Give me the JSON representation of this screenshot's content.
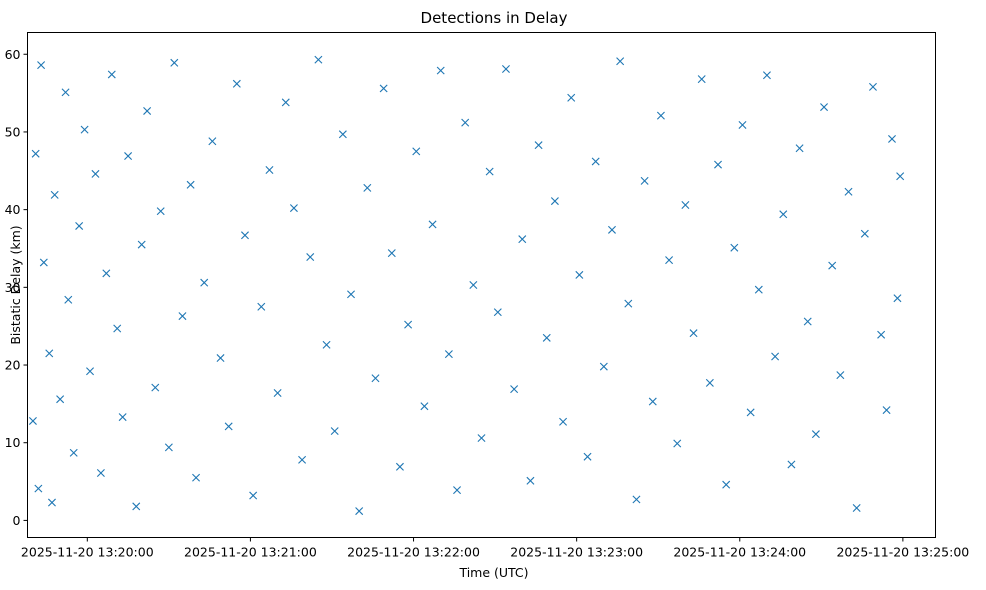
{
  "chart_data": {
    "type": "scatter",
    "title": "Detections in Delay",
    "xlabel": "Time (UTC)",
    "ylabel": "Bistatic Delay (km)",
    "xlim": [
      "2025-11-20 13:19:38",
      "2025-11-20 13:25:12"
    ],
    "ylim": [
      -2.2,
      62.8
    ],
    "x_ticks": [
      "2025-11-20 13:20:00",
      "2025-11-20 13:21:00",
      "2025-11-20 13:22:00",
      "2025-11-20 13:23:00",
      "2025-11-20 13:24:00",
      "2025-11-20 13:25:00"
    ],
    "y_ticks": [
      "0",
      "10",
      "20",
      "30",
      "40",
      "50",
      "60"
    ],
    "y_tick_values": [
      0,
      10,
      20,
      30,
      40,
      50,
      60
    ],
    "marker": "x",
    "color": "#1f77b4",
    "grid": false,
    "legend": "none",
    "series": [
      {
        "x": [
          "2025-11-20 13:19:40",
          "2025-11-20 13:19:41",
          "2025-11-20 13:19:42",
          "2025-11-20 13:19:43",
          "2025-11-20 13:19:44",
          "2025-11-20 13:19:46",
          "2025-11-20 13:19:47",
          "2025-11-20 13:19:48",
          "2025-11-20 13:19:50",
          "2025-11-20 13:19:52",
          "2025-11-20 13:19:53",
          "2025-11-20 13:19:55",
          "2025-11-20 13:19:57",
          "2025-11-20 13:19:59",
          "2025-11-20 13:20:01",
          "2025-11-20 13:20:03",
          "2025-11-20 13:20:05",
          "2025-11-20 13:20:07",
          "2025-11-20 13:20:09",
          "2025-11-20 13:20:11",
          "2025-11-20 13:20:13",
          "2025-11-20 13:20:15",
          "2025-11-20 13:20:18",
          "2025-11-20 13:20:20",
          "2025-11-20 13:20:22",
          "2025-11-20 13:20:25",
          "2025-11-20 13:20:27",
          "2025-11-20 13:20:30",
          "2025-11-20 13:20:32",
          "2025-11-20 13:20:35",
          "2025-11-20 13:20:38",
          "2025-11-20 13:20:40",
          "2025-11-20 13:20:43",
          "2025-11-20 13:20:46",
          "2025-11-20 13:20:49",
          "2025-11-20 13:20:52",
          "2025-11-20 13:20:55",
          "2025-11-20 13:20:58",
          "2025-11-20 13:21:01",
          "2025-11-20 13:21:04",
          "2025-11-20 13:21:07",
          "2025-11-20 13:21:10",
          "2025-11-20 13:21:13",
          "2025-11-20 13:21:16",
          "2025-11-20 13:21:19",
          "2025-11-20 13:21:22",
          "2025-11-20 13:21:25",
          "2025-11-20 13:21:28",
          "2025-11-20 13:21:31",
          "2025-11-20 13:21:34",
          "2025-11-20 13:21:37",
          "2025-11-20 13:21:40",
          "2025-11-20 13:21:43",
          "2025-11-20 13:21:46",
          "2025-11-20 13:21:49",
          "2025-11-20 13:21:52",
          "2025-11-20 13:21:55",
          "2025-11-20 13:21:58",
          "2025-11-20 13:22:01",
          "2025-11-20 13:22:04",
          "2025-11-20 13:22:07",
          "2025-11-20 13:22:10",
          "2025-11-20 13:22:13",
          "2025-11-20 13:22:16",
          "2025-11-20 13:22:19",
          "2025-11-20 13:22:22",
          "2025-11-20 13:22:25",
          "2025-11-20 13:22:28",
          "2025-11-20 13:22:31",
          "2025-11-20 13:22:34",
          "2025-11-20 13:22:37",
          "2025-11-20 13:22:40",
          "2025-11-20 13:22:43",
          "2025-11-20 13:22:46",
          "2025-11-20 13:22:49",
          "2025-11-20 13:22:52",
          "2025-11-20 13:22:55",
          "2025-11-20 13:22:58",
          "2025-11-20 13:23:01",
          "2025-11-20 13:23:04",
          "2025-11-20 13:23:07",
          "2025-11-20 13:23:10",
          "2025-11-20 13:23:13",
          "2025-11-20 13:23:16",
          "2025-11-20 13:23:19",
          "2025-11-20 13:23:22",
          "2025-11-20 13:23:25",
          "2025-11-20 13:23:28",
          "2025-11-20 13:23:31",
          "2025-11-20 13:23:34",
          "2025-11-20 13:23:37",
          "2025-11-20 13:23:40",
          "2025-11-20 13:23:43",
          "2025-11-20 13:23:46",
          "2025-11-20 13:23:49",
          "2025-11-20 13:23:52",
          "2025-11-20 13:23:55",
          "2025-11-20 13:23:58",
          "2025-11-20 13:24:01",
          "2025-11-20 13:24:04",
          "2025-11-20 13:24:07",
          "2025-11-20 13:24:10",
          "2025-11-20 13:24:13",
          "2025-11-20 13:24:16",
          "2025-11-20 13:24:19",
          "2025-11-20 13:24:22",
          "2025-11-20 13:24:25",
          "2025-11-20 13:24:28",
          "2025-11-20 13:24:31",
          "2025-11-20 13:24:34",
          "2025-11-20 13:24:37",
          "2025-11-20 13:24:40",
          "2025-11-20 13:24:43",
          "2025-11-20 13:24:46",
          "2025-11-20 13:24:49",
          "2025-11-20 13:24:52",
          "2025-11-20 13:24:54",
          "2025-11-20 13:24:56",
          "2025-11-20 13:24:58",
          "2025-11-20 13:24:59"
        ],
        "y": [
          12.8,
          47.2,
          4.1,
          58.6,
          33.2,
          21.5,
          2.3,
          41.9,
          15.6,
          55.1,
          28.4,
          8.7,
          37.9,
          50.3,
          19.2,
          44.6,
          6.1,
          31.8,
          57.4,
          24.7,
          13.3,
          46.9,
          1.8,
          35.5,
          52.7,
          17.1,
          39.8,
          9.4,
          58.9,
          26.3,
          43.2,
          5.5,
          30.6,
          48.8,
          20.9,
          12.1,
          56.2,
          36.7,
          3.2,
          27.5,
          45.1,
          16.4,
          53.8,
          40.2,
          7.8,
          33.9,
          59.3,
          22.6,
          11.5,
          49.7,
          29.1,
          1.2,
          42.8,
          18.3,
          55.6,
          34.4,
          6.9,
          25.2,
          47.5,
          14.7,
          38.1,
          57.9,
          21.4,
          3.9,
          51.2,
          30.3,
          10.6,
          44.9,
          26.8,
          58.1,
          16.9,
          36.2,
          5.1,
          48.3,
          23.5,
          41.1,
          12.7,
          54.4,
          31.6,
          8.2,
          46.2,
          19.8,
          37.4,
          59.1,
          27.9,
          2.7,
          43.7,
          15.3,
          52.1,
          33.5,
          9.9,
          40.6,
          24.1,
          56.8,
          17.7,
          45.8,
          4.6,
          35.1,
          50.9,
          13.9,
          29.7,
          57.3,
          21.1,
          39.4,
          7.2,
          47.9,
          25.6,
          11.1,
          53.2,
          32.8,
          18.7,
          42.3,
          1.6,
          36.9,
          55.8,
          23.9,
          14.2,
          49.1,
          28.6,
          44.3
        ]
      }
    ]
  }
}
